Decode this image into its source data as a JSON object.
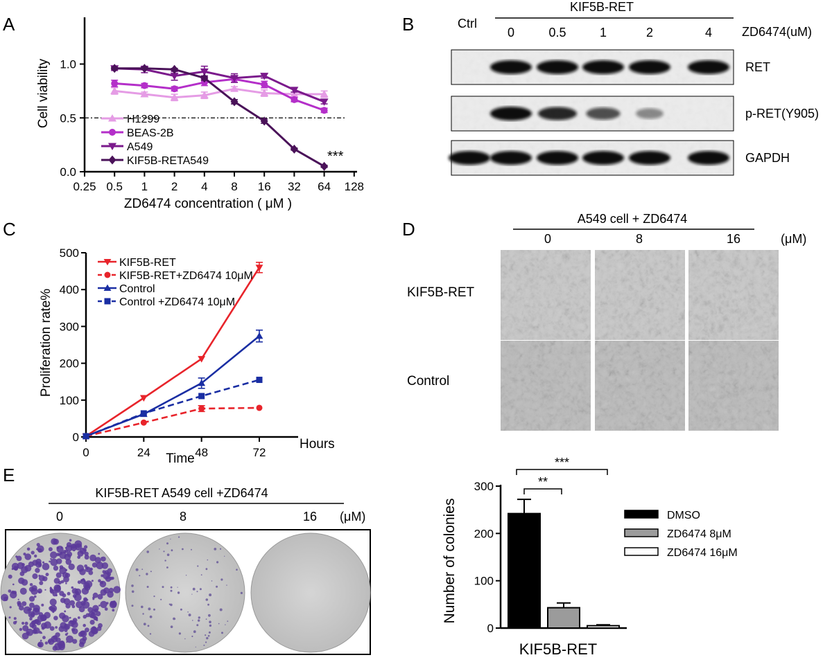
{
  "panels": {
    "A": "A",
    "B": "B",
    "C": "C",
    "D": "D",
    "E": "E"
  },
  "chart_data": [
    {
      "type": "line",
      "panel": "A",
      "xlabel": "ZD6474 concentration ( μM )",
      "ylabel": "Cell viability",
      "x_scale": "log2",
      "x_ticks": [
        "0.25",
        "0.5",
        "1",
        "2",
        "4",
        "8",
        "16",
        "32",
        "64",
        "128"
      ],
      "y_ticks": [
        "0.0",
        "0.5",
        "1.0"
      ],
      "xlim": [
        0.25,
        128
      ],
      "ylim": [
        0,
        1.2
      ],
      "threshold": 0.5,
      "annotation": "***",
      "x": [
        0.5,
        1,
        2,
        4,
        8,
        16,
        32,
        64
      ],
      "series": [
        {
          "name": "H1299",
          "color": "#e59ce5",
          "marker": "triangle-up",
          "values": [
            0.75,
            0.72,
            0.69,
            0.71,
            0.77,
            0.73,
            0.72,
            0.72
          ],
          "errors": [
            0.03,
            0.02,
            0.03,
            0.03,
            0.02,
            0.03,
            0.02,
            0.03
          ]
        },
        {
          "name": "BEAS-2B",
          "color": "#b42fc9",
          "marker": "circle",
          "values": [
            0.82,
            0.8,
            0.77,
            0.83,
            0.86,
            0.81,
            0.67,
            0.57
          ],
          "errors": [
            0.03,
            0.02,
            0.02,
            0.03,
            0.03,
            0.03,
            0.02,
            0.02
          ]
        },
        {
          "name": "A549",
          "color": "#7b1a8c",
          "marker": "triangle-down",
          "values": [
            0.96,
            0.95,
            0.89,
            0.93,
            0.87,
            0.89,
            0.76,
            0.65
          ],
          "errors": [
            0.02,
            0.03,
            0.04,
            0.05,
            0.04,
            0.02,
            0.02,
            0.02
          ]
        },
        {
          "name": "KIF5B-RETA549",
          "color": "#4a1259",
          "marker": "diamond",
          "values": [
            0.96,
            0.96,
            0.95,
            0.87,
            0.65,
            0.47,
            0.21,
            0.05
          ],
          "errors": [
            0.01,
            0.01,
            0.01,
            0.02,
            0.02,
            0.02,
            0.01,
            0.01
          ]
        }
      ]
    },
    {
      "type": "line",
      "panel": "C",
      "xlabel": "Time",
      "x_unit": "Hours",
      "ylabel": "Proliferation rate%",
      "x_ticks": [
        "0",
        "24",
        "48",
        "72"
      ],
      "y_ticks": [
        "0",
        "100",
        "200",
        "300",
        "400",
        "500"
      ],
      "xlim": [
        0,
        72
      ],
      "ylim": [
        0,
        500
      ],
      "x": [
        0,
        24,
        48,
        72
      ],
      "series": [
        {
          "name": "KIF5B-RET",
          "color": "#e8242b",
          "marker": "triangle-down",
          "dashed": false,
          "values": [
            2,
            106,
            212,
            460
          ],
          "errors": [
            0,
            0,
            0,
            14
          ]
        },
        {
          "name": "KIF5B-RET+ZD6474 10μM",
          "color": "#e8242b",
          "marker": "circle",
          "dashed": true,
          "values": [
            2,
            39,
            77,
            79
          ],
          "errors": [
            0,
            0,
            8,
            0
          ]
        },
        {
          "name": "Control",
          "color": "#1a2ea3",
          "marker": "triangle-up",
          "dashed": false,
          "values": [
            2,
            62,
            146,
            274
          ],
          "errors": [
            0,
            0,
            14,
            16
          ]
        },
        {
          "name": "Control +ZD6474 10μM",
          "color": "#1a2ea3",
          "marker": "square",
          "dashed": true,
          "values": [
            2,
            64,
            111,
            155
          ],
          "errors": [
            0,
            0,
            0,
            0
          ]
        }
      ]
    },
    {
      "type": "bar",
      "panel": "E",
      "ylabel": "Number of colonies",
      "xlabel": "KIF5B-RET",
      "y_ticks": [
        "0",
        "100",
        "200",
        "300"
      ],
      "ylim": [
        0,
        300
      ],
      "series": [
        {
          "name": "DMSO",
          "color": "#000000",
          "values": [
            242
          ],
          "errors": [
            30
          ]
        },
        {
          "name": "ZD6474    8μM",
          "color": "#9b9b9b",
          "values": [
            43
          ],
          "errors": [
            10
          ]
        },
        {
          "name": "ZD6474    16μM",
          "color": "#ffffff",
          "values": [
            5
          ],
          "errors": [
            2
          ]
        }
      ],
      "significance": [
        "**",
        "***"
      ]
    }
  ],
  "western": {
    "group_label": "KIF5B-RET",
    "ctrl_label": "Ctrl",
    "doses": [
      "0",
      "0.5",
      "1",
      "2",
      "4"
    ],
    "drug_label": "ZD6474(uM)",
    "rows": [
      {
        "label": "RET",
        "intensities": [
          0,
          1,
          1,
          1,
          1,
          1
        ]
      },
      {
        "label": "p-RET(Y905)",
        "intensities": [
          0,
          1,
          0.85,
          0.6,
          0.25,
          0
        ]
      },
      {
        "label": "GAPDH",
        "intensities": [
          1,
          1,
          1,
          1,
          1,
          1
        ]
      }
    ]
  },
  "microscopy": {
    "title": "A549 cell + ZD6474",
    "doses": [
      "0",
      "8",
      "16"
    ],
    "unit": "(μM)",
    "rows": [
      "KIF5B-RET",
      "Control"
    ]
  },
  "colony": {
    "title": "KIF5B-RET  A549 cell +ZD6474",
    "doses": [
      "0",
      "8",
      "16"
    ],
    "unit": "(μM)"
  }
}
